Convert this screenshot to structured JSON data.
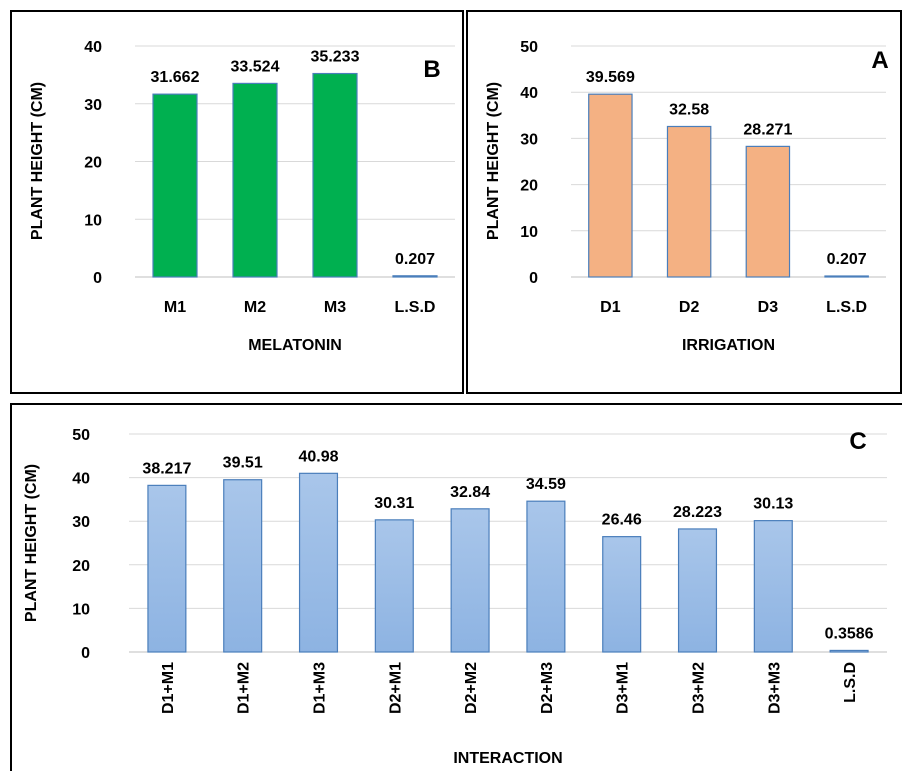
{
  "chart_data": [
    {
      "id": "b",
      "type": "bar",
      "panel_letter": "B",
      "categories": [
        "M1",
        "M2",
        "M3",
        "L.S.D"
      ],
      "values": [
        31.662,
        33.524,
        35.233,
        0.207
      ],
      "value_labels": [
        "31.662",
        "33.524",
        "35.233",
        "0.207"
      ],
      "xlabel": "MELATONIN",
      "ylabel": "PLANT HEIGHT (CM)",
      "ylim": [
        0,
        40
      ],
      "yticks": [
        0,
        10,
        20,
        30,
        40
      ],
      "bar_fill": "#00b050",
      "bar_stroke": "#4a7ebb",
      "grid": true
    },
    {
      "id": "a",
      "type": "bar",
      "panel_letter": "A",
      "categories": [
        "D1",
        "D2",
        "D3",
        "L.S.D"
      ],
      "values": [
        39.569,
        32.58,
        28.271,
        0.207
      ],
      "value_labels": [
        "39.569",
        "32.58",
        "28.271",
        "0.207"
      ],
      "xlabel": "IRRIGATION",
      "ylabel": "PLANT HEIGHT (CM)",
      "ylim": [
        0,
        50
      ],
      "yticks": [
        0,
        10,
        20,
        30,
        40,
        50
      ],
      "bar_fill": "#f4b183",
      "bar_stroke": "#4a7ebb",
      "grid": true
    },
    {
      "id": "c",
      "type": "bar",
      "panel_letter": "C",
      "categories": [
        "D1+M1",
        "D1+M2",
        "D1+M3",
        "D2+M1",
        "D2+M2",
        "D2+M3",
        "D3+M1",
        "D3+M2",
        "D3+M3",
        "L.S.D"
      ],
      "values": [
        38.217,
        39.51,
        40.98,
        30.31,
        32.84,
        34.59,
        26.46,
        28.223,
        30.13,
        0.3586
      ],
      "value_labels": [
        "38.217",
        "39.51",
        "40.98",
        "30.31",
        "32.84",
        "34.59",
        "26.46",
        "28.223",
        "30.13",
        "0.3586"
      ],
      "xlabel": "INTERACTION",
      "ylabel": "PLANT HEIGHT (CM)",
      "ylim": [
        0,
        50
      ],
      "yticks": [
        0,
        10,
        20,
        30,
        40,
        50
      ],
      "bar_fill_top": "#a9c6ea",
      "bar_fill_bottom": "#8db3e2",
      "bar_stroke": "#4a7ebb",
      "grid": true
    }
  ]
}
